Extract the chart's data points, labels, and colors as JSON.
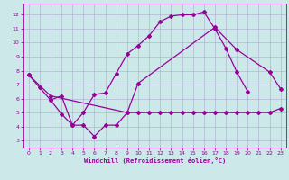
{
  "xlim": [
    -0.5,
    23.5
  ],
  "ylim": [
    2.5,
    12.8
  ],
  "yticks": [
    3,
    4,
    5,
    6,
    7,
    8,
    9,
    10,
    11,
    12
  ],
  "xticks": [
    0,
    1,
    2,
    3,
    4,
    5,
    6,
    7,
    8,
    9,
    10,
    11,
    12,
    13,
    14,
    15,
    16,
    17,
    18,
    19,
    20,
    21,
    22,
    23
  ],
  "xlabel": "Windchill (Refroidissement éolien,°C)",
  "line_color": "#990099",
  "bg_color": "#cce8e8",
  "grid_color": "#aaaacc",
  "marker": "D",
  "marker_size": 2.0,
  "linewidth": 0.9,
  "curve1_x": [
    0,
    1,
    2,
    3,
    4,
    5,
    6,
    7,
    8,
    9,
    10,
    11,
    12,
    13,
    14,
    15,
    16,
    17,
    18,
    19,
    20,
    21,
    22,
    23
  ],
  "curve1_y": [
    7.7,
    6.8,
    5.9,
    6.2,
    4.1,
    4.1,
    3.3,
    4.1,
    4.1,
    5.0,
    5.0,
    5.0,
    5.0,
    5.0,
    5.0,
    5.0,
    5.0,
    5.0,
    5.0,
    5.0,
    5.0,
    5.0,
    5.0,
    5.3
  ],
  "curve2_x": [
    2,
    3,
    4,
    5,
    6,
    7,
    8,
    9,
    10,
    11,
    12,
    13,
    14,
    15,
    16,
    17,
    18,
    19,
    20
  ],
  "curve2_y": [
    5.9,
    4.9,
    4.1,
    5.0,
    6.3,
    6.4,
    7.8,
    9.2,
    9.8,
    10.5,
    11.5,
    11.9,
    12.0,
    12.0,
    12.2,
    11.0,
    9.6,
    7.9,
    6.5
  ],
  "curve3_x": [
    0,
    2,
    9,
    10,
    17,
    19,
    22,
    23
  ],
  "curve3_y": [
    7.7,
    6.2,
    5.0,
    7.1,
    11.1,
    9.5,
    7.9,
    6.7
  ]
}
